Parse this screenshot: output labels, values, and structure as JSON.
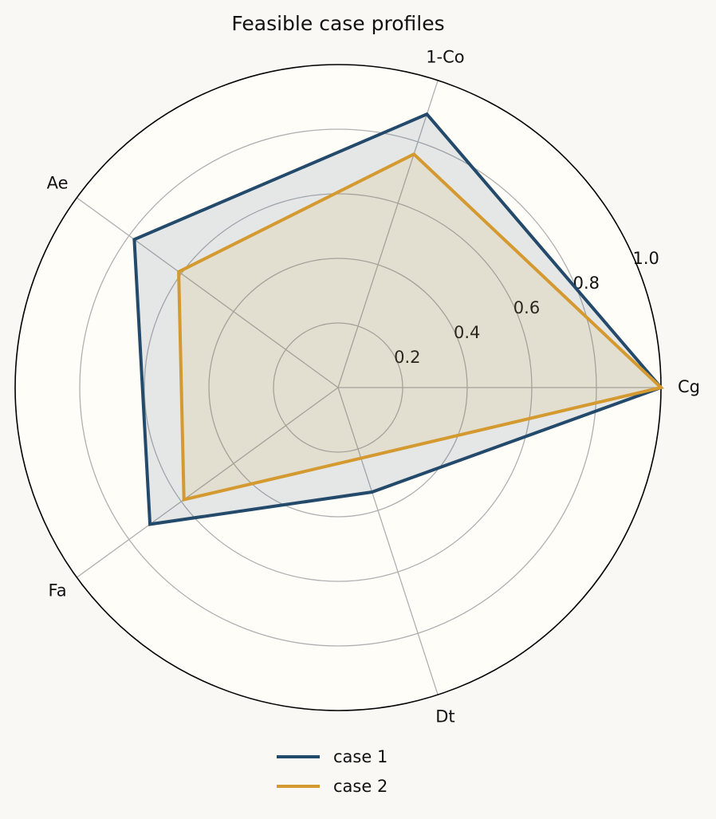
{
  "chart_data": {
    "type": "radar",
    "title": "Feasible case profiles",
    "categories": [
      "Cg",
      "1-Co",
      "Ae",
      "Fa",
      "Dt"
    ],
    "series": [
      {
        "name": "case 1",
        "color": "#23496b",
        "values": [
          1.0,
          0.89,
          0.78,
          0.72,
          0.34
        ]
      },
      {
        "name": "case 2",
        "color": "#d4992f",
        "values": [
          1.0,
          0.76,
          0.61,
          0.59,
          0.23
        ]
      }
    ],
    "rlim": [
      0,
      1
    ],
    "rticks": [
      0.2,
      0.4,
      0.6,
      0.8,
      {
        "value": 1,
        "label": "1.0"
      }
    ],
    "grid": true,
    "legend": "bottom"
  }
}
